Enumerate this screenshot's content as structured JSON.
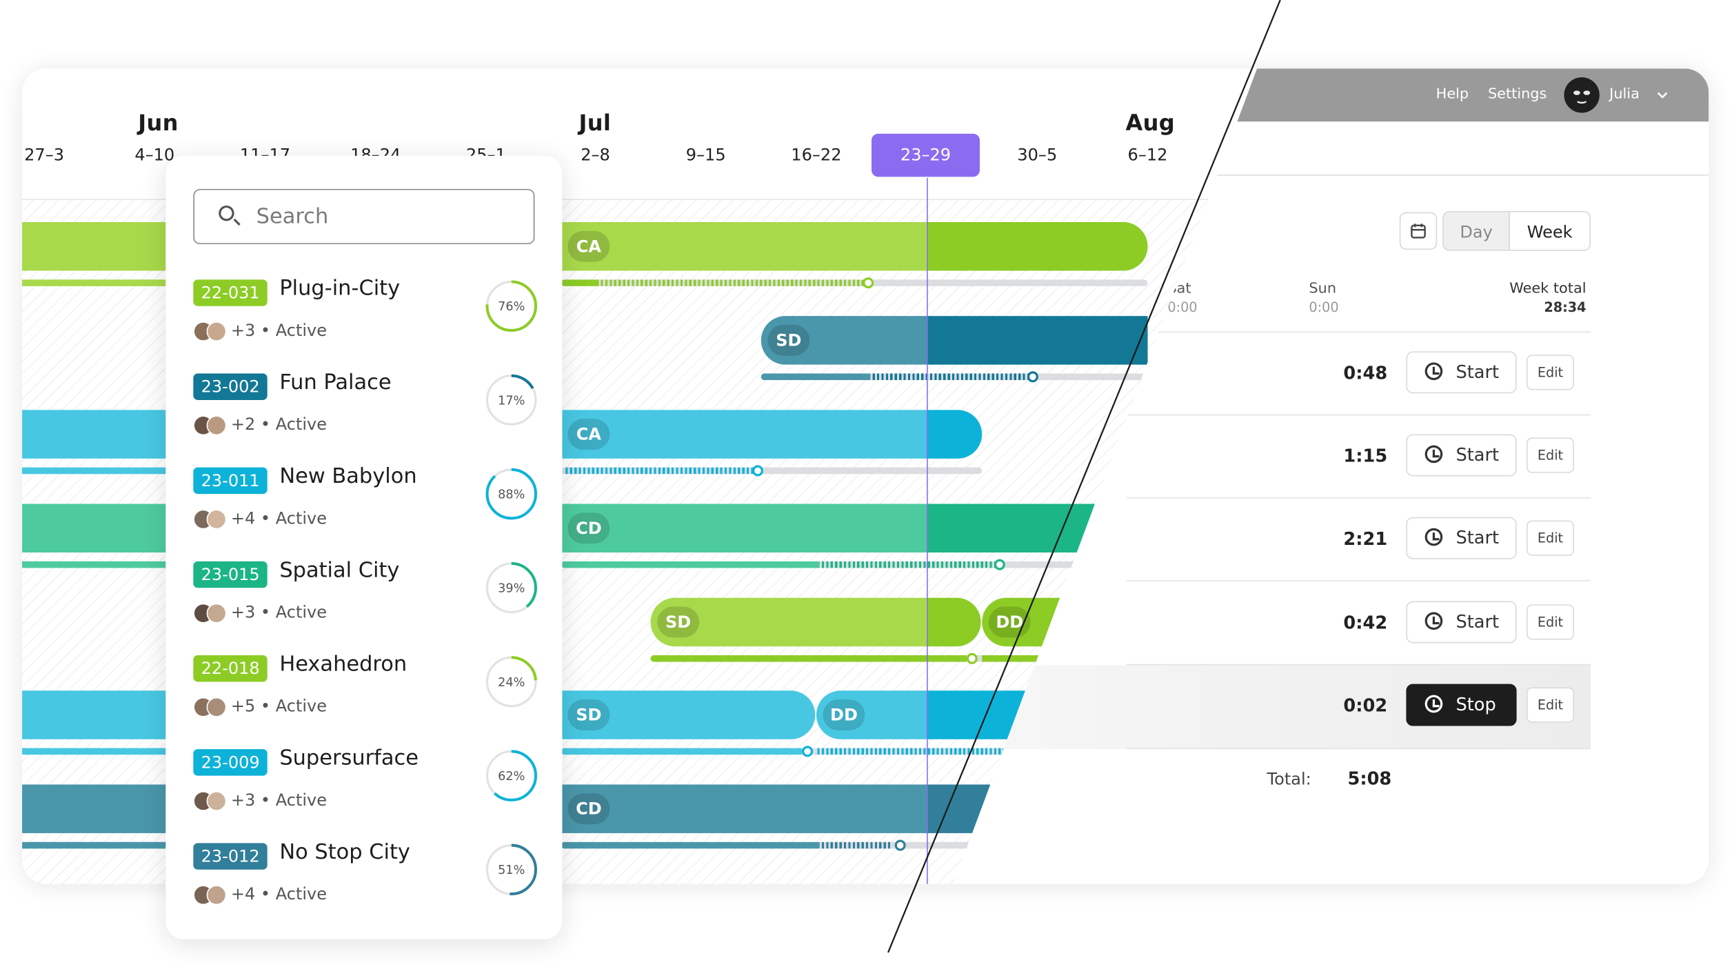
{
  "timeline": {
    "months": [
      "Jun",
      "Jul",
      "Aug"
    ],
    "weeks": [
      "27–3",
      "4–10",
      "11–17",
      "18–24",
      "25–1",
      "2–8",
      "9–15",
      "16–22",
      "23–29",
      "30–5",
      "6–12"
    ],
    "current_week": "23–29",
    "bars": [
      {
        "phase": "CA",
        "color": "#8ccc25"
      },
      {
        "phase": "SD",
        "color": "#127896"
      },
      {
        "phase": "CA",
        "color": "#0db2d8"
      },
      {
        "phase": "CD",
        "color": "#1bb586"
      },
      {
        "phase": "SD",
        "color": "#8ccc25"
      },
      {
        "phase": "DD",
        "color": "#8ccc25"
      },
      {
        "phase": "SD",
        "color": "#0db2d8"
      },
      {
        "phase": "DD",
        "color": "#0db2d8"
      },
      {
        "phase": "CD",
        "color": "#317f9a"
      }
    ]
  },
  "search": {
    "placeholder": "Search"
  },
  "projects": [
    {
      "code": "22-031",
      "name": "Plug-in-City",
      "extra": "+3",
      "status": "Active",
      "percent_label": "76%",
      "percent": 76,
      "color": "#8ccc25"
    },
    {
      "code": "23-002",
      "name": "Fun Palace",
      "extra": "+2",
      "status": "Active",
      "percent_label": "17%",
      "percent": 17,
      "color": "#127896"
    },
    {
      "code": "23-011",
      "name": "New Babylon",
      "extra": "+4",
      "status": "Active",
      "percent_label": "88%",
      "percent": 88,
      "color": "#0db2d8"
    },
    {
      "code": "23-015",
      "name": "Spatial City",
      "extra": "+3",
      "status": "Active",
      "percent_label": "39%",
      "percent": 39,
      "color": "#1bb586"
    },
    {
      "code": "22-018",
      "name": "Hexahedron",
      "extra": "+5",
      "status": "Active",
      "percent_label": "24%",
      "percent": 24,
      "color": "#8ccc25"
    },
    {
      "code": "23-009",
      "name": "Supersurface",
      "extra": "+3",
      "status": "Active",
      "percent_label": "62%",
      "percent": 62,
      "color": "#0db2d8"
    },
    {
      "code": "23-012",
      "name": "No Stop City",
      "extra": "+4",
      "status": "Active",
      "percent_label": "51%",
      "percent": 51,
      "color": "#317f9a"
    }
  ],
  "header": {
    "help": "Help",
    "settings": "Settings",
    "user": "Julia"
  },
  "view_toggle": {
    "day": "Day",
    "week": "Week",
    "active": "Week"
  },
  "days": [
    {
      "label": "Sat",
      "value": "0:00"
    },
    {
      "label": "Sun",
      "value": "0:00"
    }
  ],
  "week_total": {
    "label": "Week total",
    "value": "28:34"
  },
  "entries": [
    {
      "time": "0:48",
      "action": "Start",
      "edit": "Edit"
    },
    {
      "time": "1:15",
      "action": "Start",
      "edit": "Edit"
    },
    {
      "time": "2:21",
      "action": "Start",
      "edit": "Edit"
    },
    {
      "time": "0:42",
      "action": "Start",
      "edit": "Edit"
    },
    {
      "time": "0:02",
      "action": "Stop",
      "edit": "Edit"
    }
  ],
  "total": {
    "label": "Total:",
    "value": "5:08"
  }
}
